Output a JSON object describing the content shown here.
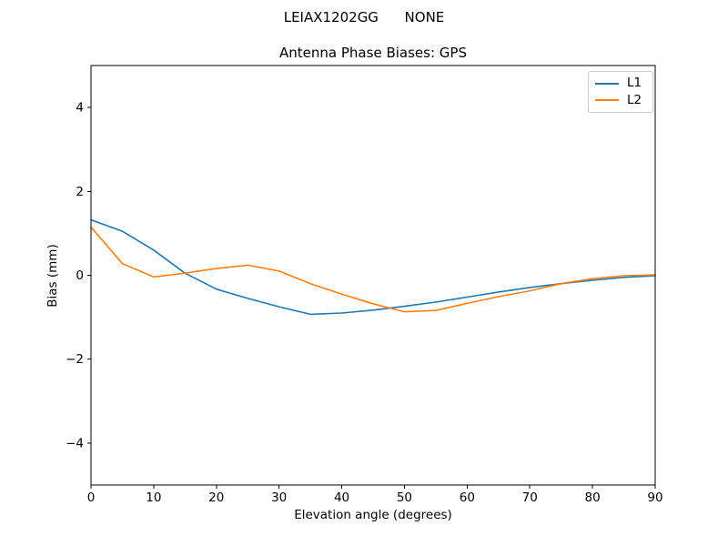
{
  "header": {
    "suptitle": "LEIAX1202GG      NONE"
  },
  "chart_data": {
    "type": "line",
    "title": "Antenna Phase Biases: GPS",
    "xlabel": "Elevation angle (degrees)",
    "ylabel": "Bias (mm)",
    "xlim": [
      0,
      90
    ],
    "ylim": [
      -5,
      5
    ],
    "xticks": [
      0,
      10,
      20,
      30,
      40,
      50,
      60,
      70,
      80,
      90
    ],
    "yticks": [
      -4,
      -2,
      0,
      2,
      4
    ],
    "grid": false,
    "legend_position": "upper right",
    "frame_color": "#000000",
    "x": [
      0,
      5,
      10,
      15,
      20,
      25,
      30,
      35,
      40,
      45,
      50,
      55,
      60,
      65,
      70,
      75,
      80,
      85,
      90
    ],
    "series": [
      {
        "name": "L1",
        "color": "#1f77b4",
        "values": [
          1.32,
          1.05,
          0.6,
          0.05,
          -0.33,
          -0.55,
          -0.75,
          -0.93,
          -0.9,
          -0.83,
          -0.74,
          -0.64,
          -0.52,
          -0.4,
          -0.29,
          -0.2,
          -0.12,
          -0.05,
          -0.01
        ]
      },
      {
        "name": "L2",
        "color": "#ff7f0e",
        "values": [
          1.15,
          0.28,
          -0.04,
          0.05,
          0.16,
          0.24,
          0.1,
          -0.2,
          -0.45,
          -0.68,
          -0.87,
          -0.84,
          -0.67,
          -0.51,
          -0.37,
          -0.2,
          -0.08,
          -0.01,
          0.01
        ]
      }
    ]
  }
}
